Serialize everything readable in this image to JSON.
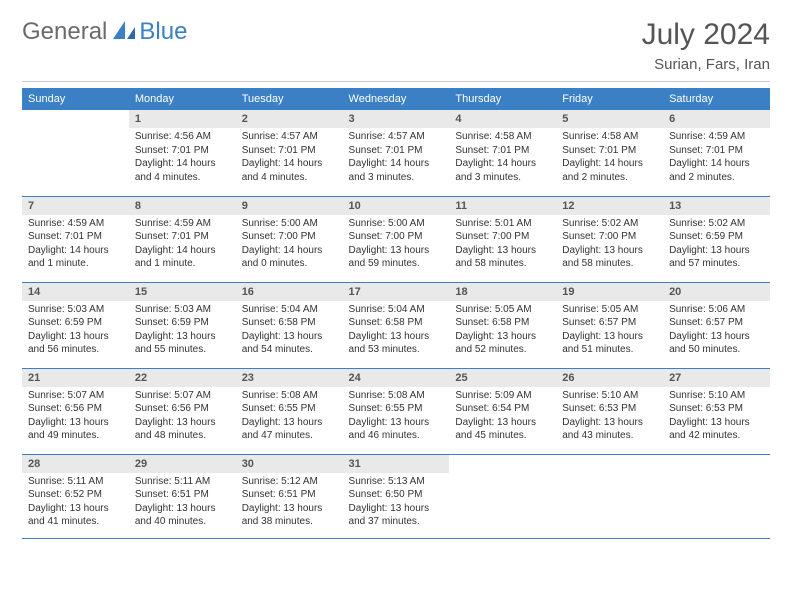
{
  "brand": {
    "general": "General",
    "blue": "Blue"
  },
  "title": "July 2024",
  "location": "Surian, Fars, Iran",
  "colors": {
    "header_bg": "#3b7fc4",
    "header_text": "#ffffff",
    "daynum_bg": "#e9e9e9",
    "border": "#3b7fc4",
    "text": "#333333"
  },
  "weekdays": [
    "Sunday",
    "Monday",
    "Tuesday",
    "Wednesday",
    "Thursday",
    "Friday",
    "Saturday"
  ],
  "weeks": [
    [
      null,
      {
        "n": "1",
        "sr": "Sunrise: 4:56 AM",
        "ss": "Sunset: 7:01 PM",
        "dl": "Daylight: 14 hours and 4 minutes."
      },
      {
        "n": "2",
        "sr": "Sunrise: 4:57 AM",
        "ss": "Sunset: 7:01 PM",
        "dl": "Daylight: 14 hours and 4 minutes."
      },
      {
        "n": "3",
        "sr": "Sunrise: 4:57 AM",
        "ss": "Sunset: 7:01 PM",
        "dl": "Daylight: 14 hours and 3 minutes."
      },
      {
        "n": "4",
        "sr": "Sunrise: 4:58 AM",
        "ss": "Sunset: 7:01 PM",
        "dl": "Daylight: 14 hours and 3 minutes."
      },
      {
        "n": "5",
        "sr": "Sunrise: 4:58 AM",
        "ss": "Sunset: 7:01 PM",
        "dl": "Daylight: 14 hours and 2 minutes."
      },
      {
        "n": "6",
        "sr": "Sunrise: 4:59 AM",
        "ss": "Sunset: 7:01 PM",
        "dl": "Daylight: 14 hours and 2 minutes."
      }
    ],
    [
      {
        "n": "7",
        "sr": "Sunrise: 4:59 AM",
        "ss": "Sunset: 7:01 PM",
        "dl": "Daylight: 14 hours and 1 minute."
      },
      {
        "n": "8",
        "sr": "Sunrise: 4:59 AM",
        "ss": "Sunset: 7:01 PM",
        "dl": "Daylight: 14 hours and 1 minute."
      },
      {
        "n": "9",
        "sr": "Sunrise: 5:00 AM",
        "ss": "Sunset: 7:00 PM",
        "dl": "Daylight: 14 hours and 0 minutes."
      },
      {
        "n": "10",
        "sr": "Sunrise: 5:00 AM",
        "ss": "Sunset: 7:00 PM",
        "dl": "Daylight: 13 hours and 59 minutes."
      },
      {
        "n": "11",
        "sr": "Sunrise: 5:01 AM",
        "ss": "Sunset: 7:00 PM",
        "dl": "Daylight: 13 hours and 58 minutes."
      },
      {
        "n": "12",
        "sr": "Sunrise: 5:02 AM",
        "ss": "Sunset: 7:00 PM",
        "dl": "Daylight: 13 hours and 58 minutes."
      },
      {
        "n": "13",
        "sr": "Sunrise: 5:02 AM",
        "ss": "Sunset: 6:59 PM",
        "dl": "Daylight: 13 hours and 57 minutes."
      }
    ],
    [
      {
        "n": "14",
        "sr": "Sunrise: 5:03 AM",
        "ss": "Sunset: 6:59 PM",
        "dl": "Daylight: 13 hours and 56 minutes."
      },
      {
        "n": "15",
        "sr": "Sunrise: 5:03 AM",
        "ss": "Sunset: 6:59 PM",
        "dl": "Daylight: 13 hours and 55 minutes."
      },
      {
        "n": "16",
        "sr": "Sunrise: 5:04 AM",
        "ss": "Sunset: 6:58 PM",
        "dl": "Daylight: 13 hours and 54 minutes."
      },
      {
        "n": "17",
        "sr": "Sunrise: 5:04 AM",
        "ss": "Sunset: 6:58 PM",
        "dl": "Daylight: 13 hours and 53 minutes."
      },
      {
        "n": "18",
        "sr": "Sunrise: 5:05 AM",
        "ss": "Sunset: 6:58 PM",
        "dl": "Daylight: 13 hours and 52 minutes."
      },
      {
        "n": "19",
        "sr": "Sunrise: 5:05 AM",
        "ss": "Sunset: 6:57 PM",
        "dl": "Daylight: 13 hours and 51 minutes."
      },
      {
        "n": "20",
        "sr": "Sunrise: 5:06 AM",
        "ss": "Sunset: 6:57 PM",
        "dl": "Daylight: 13 hours and 50 minutes."
      }
    ],
    [
      {
        "n": "21",
        "sr": "Sunrise: 5:07 AM",
        "ss": "Sunset: 6:56 PM",
        "dl": "Daylight: 13 hours and 49 minutes."
      },
      {
        "n": "22",
        "sr": "Sunrise: 5:07 AM",
        "ss": "Sunset: 6:56 PM",
        "dl": "Daylight: 13 hours and 48 minutes."
      },
      {
        "n": "23",
        "sr": "Sunrise: 5:08 AM",
        "ss": "Sunset: 6:55 PM",
        "dl": "Daylight: 13 hours and 47 minutes."
      },
      {
        "n": "24",
        "sr": "Sunrise: 5:08 AM",
        "ss": "Sunset: 6:55 PM",
        "dl": "Daylight: 13 hours and 46 minutes."
      },
      {
        "n": "25",
        "sr": "Sunrise: 5:09 AM",
        "ss": "Sunset: 6:54 PM",
        "dl": "Daylight: 13 hours and 45 minutes."
      },
      {
        "n": "26",
        "sr": "Sunrise: 5:10 AM",
        "ss": "Sunset: 6:53 PM",
        "dl": "Daylight: 13 hours and 43 minutes."
      },
      {
        "n": "27",
        "sr": "Sunrise: 5:10 AM",
        "ss": "Sunset: 6:53 PM",
        "dl": "Daylight: 13 hours and 42 minutes."
      }
    ],
    [
      {
        "n": "28",
        "sr": "Sunrise: 5:11 AM",
        "ss": "Sunset: 6:52 PM",
        "dl": "Daylight: 13 hours and 41 minutes."
      },
      {
        "n": "29",
        "sr": "Sunrise: 5:11 AM",
        "ss": "Sunset: 6:51 PM",
        "dl": "Daylight: 13 hours and 40 minutes."
      },
      {
        "n": "30",
        "sr": "Sunrise: 5:12 AM",
        "ss": "Sunset: 6:51 PM",
        "dl": "Daylight: 13 hours and 38 minutes."
      },
      {
        "n": "31",
        "sr": "Sunrise: 5:13 AM",
        "ss": "Sunset: 6:50 PM",
        "dl": "Daylight: 13 hours and 37 minutes."
      },
      null,
      null,
      null
    ]
  ]
}
